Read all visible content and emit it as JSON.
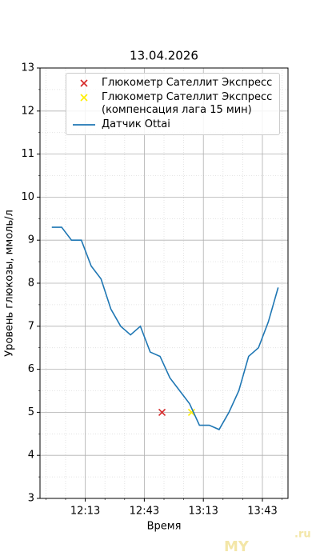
{
  "chart_data": {
    "type": "line",
    "title": "13.04.2026",
    "x_label": "Время",
    "y_label": "Уровень глюкозы, ммоль/л",
    "xlim": [
      710,
      836
    ],
    "ylim": [
      3,
      13
    ],
    "xticks": [
      {
        "value": 733,
        "label": "12:13"
      },
      {
        "value": 763,
        "label": "12:43"
      },
      {
        "value": 793,
        "label": "13:13"
      },
      {
        "value": 823,
        "label": "13:43"
      }
    ],
    "yticks": [
      3,
      4,
      5,
      6,
      7,
      8,
      9,
      10,
      11,
      12,
      13
    ],
    "x_minor_ticks": [
      713,
      723,
      743,
      753,
      773,
      783,
      803,
      813,
      833
    ],
    "y_minor_ticks": [
      3.5,
      4.5,
      5.5,
      6.5,
      7.5,
      8.5,
      9.5,
      10.5,
      11.5,
      12.5
    ],
    "grid": true,
    "legend": "upper right",
    "series": [
      {
        "name": "Глюкометр Сателлит Экспресс",
        "kind": "scatter",
        "color": "#d62728",
        "x": [
          772
        ],
        "values": [
          5.0
        ]
      },
      {
        "name": "Глюкометр Сателлит Экспресс\n(компенсация лага 15 мин)",
        "kind": "scatter",
        "color": "#ffee00",
        "x": [
          787
        ],
        "values": [
          5.0
        ]
      },
      {
        "name": "Датчик Ottai",
        "kind": "line",
        "color": "#1f77b4",
        "x": [
          716,
          721,
          726,
          731,
          736,
          741,
          746,
          751,
          756,
          761,
          766,
          771,
          776,
          781,
          786,
          791,
          796,
          801,
          806,
          811,
          816,
          821,
          826,
          831
        ],
        "values": [
          9.3,
          9.3,
          9.0,
          9.0,
          8.4,
          8.1,
          7.4,
          7.0,
          6.8,
          7.0,
          6.4,
          6.3,
          5.8,
          5.5,
          5.2,
          4.7,
          4.7,
          4.6,
          5.0,
          5.5,
          6.3,
          6.5,
          7.1,
          7.9
        ]
      }
    ],
    "watermark": [
      "MY",
      ".ru"
    ]
  }
}
